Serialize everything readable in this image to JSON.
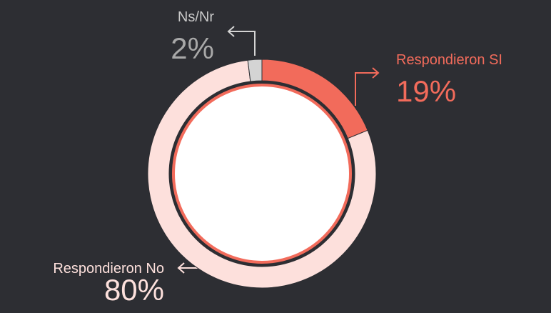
{
  "chart_data": {
    "type": "donut",
    "categories": [
      "Respondieron SI",
      "Respondieron No",
      "Ns/Nr"
    ],
    "values": [
      19,
      80,
      2
    ],
    "value_labels": [
      "19%",
      "80%",
      "2%"
    ],
    "colors": [
      "#f26b5b",
      "#fde0dc",
      "#d4d4d4"
    ]
  }
}
